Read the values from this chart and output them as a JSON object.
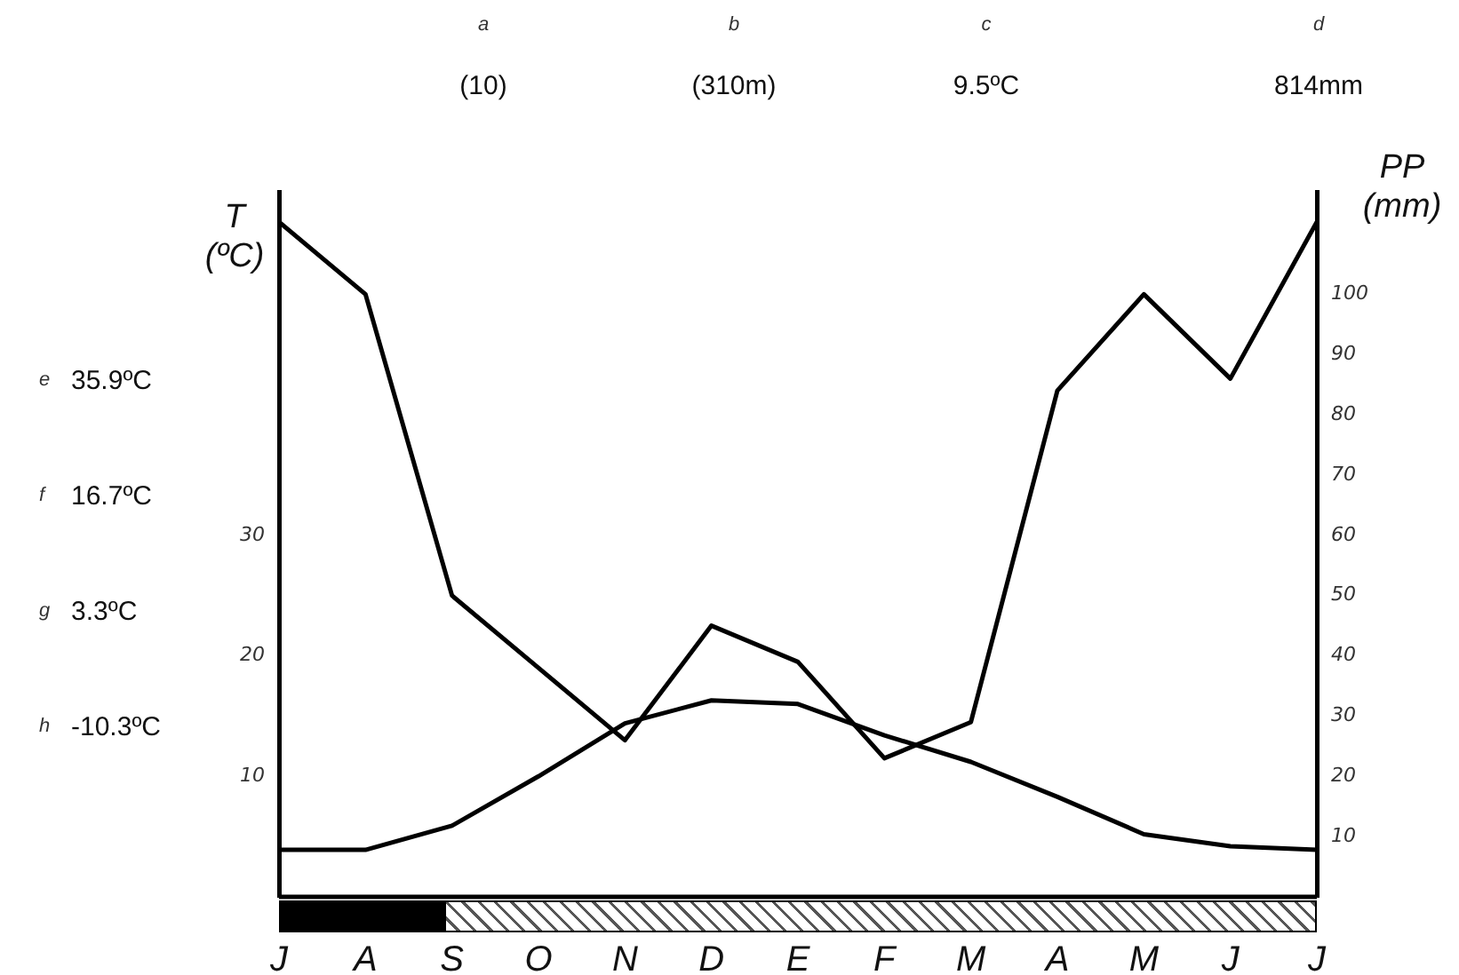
{
  "chart_data": {
    "type": "line",
    "categories": [
      "J",
      "A",
      "S",
      "O",
      "N",
      "D",
      "E",
      "F",
      "M",
      "A",
      "M",
      "J",
      "J"
    ],
    "series": [
      {
        "color": "#000000",
        "axis": "y",
        "values": [
          3.9,
          3.9,
          5.9,
          10,
          14.4,
          16.3,
          16,
          13.4,
          11.2,
          8.3,
          5.2,
          4.2,
          3.9
        ]
      },
      {
        "color": "#000000",
        "axis": "y2",
        "values": [
          112,
          100,
          50,
          38,
          26,
          45,
          39,
          23,
          29,
          84,
          100,
          86,
          112
        ]
      }
    ],
    "ylabel": "T (ºC)",
    "y2label": "PP (mm)",
    "ylim": [
      0,
      58.5
    ],
    "yticks": [
      10,
      20,
      30
    ],
    "y2lim": [
      0,
      117
    ],
    "y2ticks": [
      10,
      20,
      30,
      40,
      50,
      60,
      70,
      80,
      90,
      100
    ],
    "annotations": [
      "a",
      "(10)",
      "b",
      "(310m)",
      "c",
      "9.5ºC",
      "d",
      "814mm",
      "e",
      "35.9ºC",
      "f",
      "16.7ºC",
      "g",
      "3.3ºC",
      "h",
      "-10.3ºC"
    ],
    "grid": false,
    "legend": false,
    "marker": "none",
    "line_style": "solid"
  }
}
